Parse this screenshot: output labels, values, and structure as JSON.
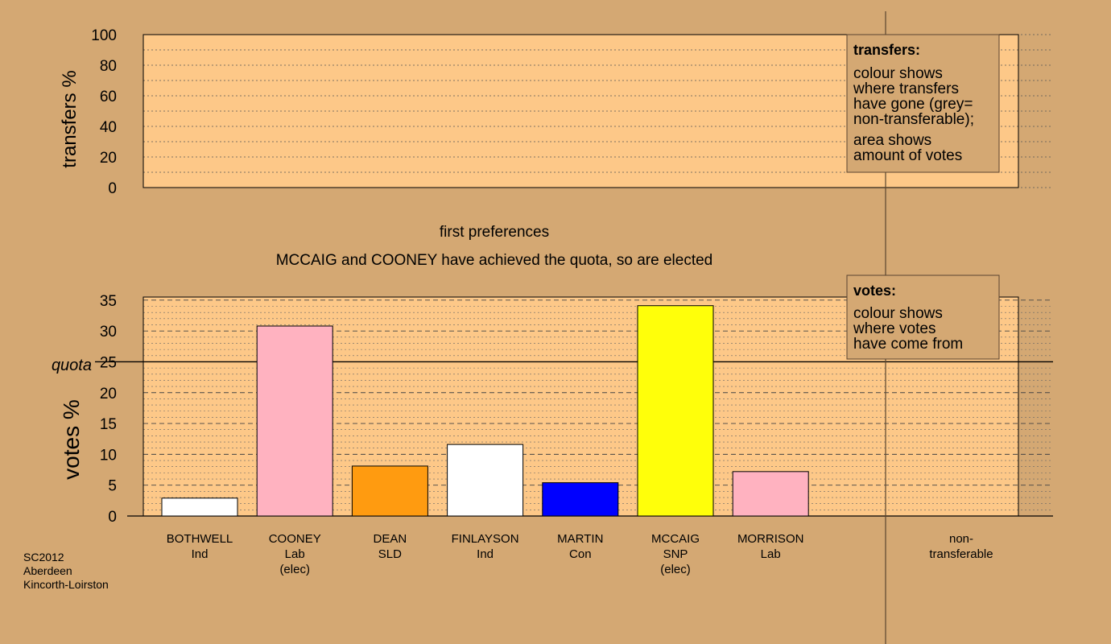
{
  "colors": {
    "background": "#d4a873",
    "panel": "#fdc888",
    "axis": "#000000",
    "divider": "#5a4530"
  },
  "top_panel": {
    "ylabel": "transfers %",
    "ticks": [
      "0",
      "20",
      "40",
      "60",
      "80",
      "100"
    ],
    "legend": {
      "title": "transfers:",
      "lines": [
        "colour shows",
        "where transfers",
        "have gone (grey=",
        "non-transferable);",
        "area shows",
        "amount of votes"
      ]
    }
  },
  "stage_title": "first preferences",
  "stage_subtitle": "MCCAIG and COONEY have achieved the quota, so are elected",
  "bottom_panel": {
    "ylabel": "votes %",
    "quota_label": "quota",
    "ticks": [
      "0",
      "5",
      "10",
      "15",
      "20",
      "25",
      "30",
      "35"
    ],
    "legend": {
      "title": "votes:",
      "lines": [
        "colour shows",
        "where votes",
        "have come from"
      ]
    }
  },
  "nontransferable_label": [
    "non-",
    "transferable"
  ],
  "footer": [
    "SC2012",
    "Aberdeen",
    "Kincorth-Loirston"
  ],
  "chart_data": [
    {
      "type": "bar",
      "title": "",
      "ylabel": "transfers %",
      "ylim": [
        0,
        100
      ],
      "grid": true,
      "legend_position": "top-right",
      "categories": [],
      "values": []
    },
    {
      "type": "bar",
      "title": "first preferences",
      "subtitle": "MCCAIG and COONEY have achieved the quota, so are elected",
      "ylabel": "votes %",
      "ylim": [
        0,
        35
      ],
      "quota": 25,
      "grid": true,
      "legend_position": "top-right",
      "categories": [
        {
          "name": "BOTHWELL",
          "party": "Ind",
          "status": ""
        },
        {
          "name": "COONEY",
          "party": "Lab",
          "status": "(elec)"
        },
        {
          "name": "DEAN",
          "party": "SLD",
          "status": ""
        },
        {
          "name": "FINLAYSON",
          "party": "Ind",
          "status": ""
        },
        {
          "name": "MARTIN",
          "party": "Con",
          "status": ""
        },
        {
          "name": "MCCAIG",
          "party": "SNP",
          "status": "(elec)"
        },
        {
          "name": "MORRISON",
          "party": "Lab",
          "status": ""
        }
      ],
      "values": [
        2.9,
        30.8,
        8.1,
        11.6,
        5.4,
        34.1,
        7.2
      ],
      "bar_colors": [
        "#ffffff",
        "#ffb2c0",
        "#ff9b10",
        "#ffffff",
        "#0000ff",
        "#ffff0a",
        "#ffb2c0"
      ]
    }
  ]
}
